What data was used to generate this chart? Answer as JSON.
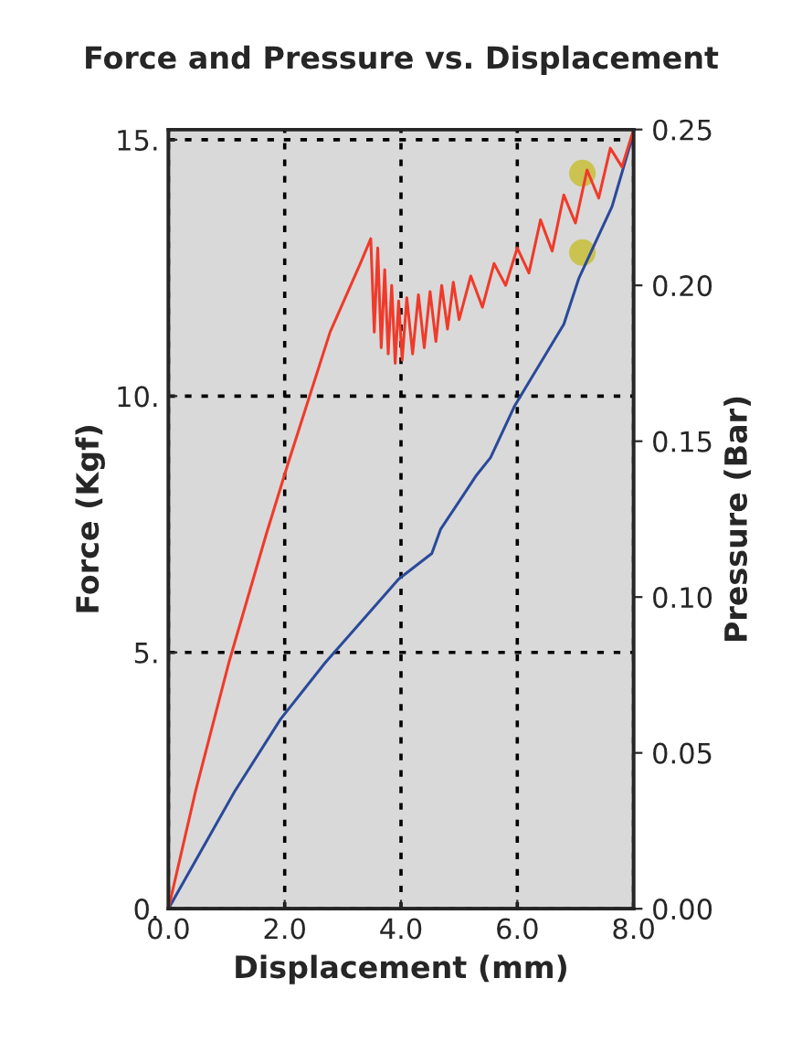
{
  "chart_data": {
    "type": "line",
    "title": "Force and Pressure vs. Displacement",
    "xlabel": "Displacement (mm)",
    "ylabel": "Force (Kgf)",
    "y2label": "Pressure (Bar)",
    "xlim": [
      0,
      8
    ],
    "xticks": [
      {
        "value": 0,
        "label": "0.0"
      },
      {
        "value": 2,
        "label": "2.0"
      },
      {
        "value": 4,
        "label": "4.0"
      },
      {
        "value": 6,
        "label": "6.0"
      },
      {
        "value": 8,
        "label": "8.0"
      }
    ],
    "ylim": [
      0,
      15.2
    ],
    "yticks": [
      {
        "value": 0,
        "label": "0."
      },
      {
        "value": 5,
        "label": "5."
      },
      {
        "value": 10,
        "label": "10."
      },
      {
        "value": 15,
        "label": "15."
      }
    ],
    "y2lim": [
      0,
      0.25
    ],
    "y2ticks": [
      {
        "value": 0,
        "label": "0.00"
      },
      {
        "value": 0.05,
        "label": "0.05"
      },
      {
        "value": 0.1,
        "label": "0.10"
      },
      {
        "value": 0.15,
        "label": "0.15"
      },
      {
        "value": 0.2,
        "label": "0.20"
      },
      {
        "value": 0.25,
        "label": "0.25"
      }
    ],
    "grid": true,
    "legend": false,
    "series": [
      {
        "color": "#2a4a9a",
        "x": [
          0,
          1.14,
          1.93,
          2.69,
          3.96,
          4.53,
          4.68,
          5.3,
          5.54,
          5.95,
          6.8,
          7.06,
          7.63,
          7.94,
          8.0
        ],
        "values": [
          0,
          2.29,
          3.7,
          4.79,
          6.43,
          6.93,
          7.4,
          8.46,
          8.8,
          9.8,
          11.4,
          12.3,
          13.7,
          14.9,
          15.0
        ]
      },
      {
        "color": "#f03a2a",
        "axis": "y2",
        "x": [
          0,
          0.47,
          1.04,
          1.68,
          2.06,
          2.78,
          3.3,
          3.48,
          3.54,
          3.6,
          3.66,
          3.72,
          3.78,
          3.84,
          3.9,
          3.96,
          4.02,
          4.1,
          4.2,
          4.3,
          4.4,
          4.5,
          4.6,
          4.7,
          4.8,
          4.9,
          5.0,
          5.2,
          5.4,
          5.6,
          5.8,
          6.0,
          6.2,
          6.4,
          6.6,
          6.8,
          7.0,
          7.2,
          7.4,
          7.6,
          7.8,
          8.0
        ],
        "values": [
          0,
          0.038,
          0.079,
          0.12,
          0.143,
          0.185,
          0.207,
          0.215,
          0.185,
          0.212,
          0.18,
          0.205,
          0.178,
          0.2,
          0.175,
          0.195,
          0.176,
          0.196,
          0.178,
          0.197,
          0.18,
          0.198,
          0.182,
          0.2,
          0.186,
          0.201,
          0.189,
          0.203,
          0.193,
          0.207,
          0.2,
          0.212,
          0.204,
          0.221,
          0.211,
          0.229,
          0.22,
          0.237,
          0.228,
          0.244,
          0.238,
          0.25
        ]
      },
      {
        "type": "scatter",
        "color": "#c8c040",
        "marker": "circle",
        "x": [
          7.12
        ],
        "values": [
          12.8
        ]
      },
      {
        "type": "scatter",
        "color": "#c8c040",
        "marker": "circle",
        "axis": "y2",
        "x": [
          7.12
        ],
        "values": [
          0.236
        ]
      }
    ]
  }
}
